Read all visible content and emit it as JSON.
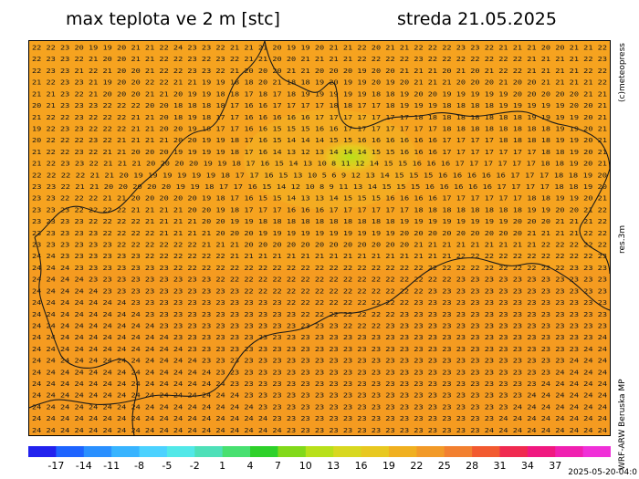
{
  "header": {
    "title": "max teplota ve 2 m [stc]",
    "date": "streda 21.05.2025"
  },
  "side_labels": {
    "copyright": "(c)meteopress",
    "resolution": "res.3m",
    "model": "WRF-ARW Beruska MP"
  },
  "timestamp": "2025-05-20-04:0",
  "legend": {
    "ticks": [
      "-17",
      "-14",
      "-11",
      "-8",
      "-5",
      "-2",
      "1",
      "4",
      "7",
      "10",
      "13",
      "16",
      "19",
      "22",
      "25",
      "28",
      "31",
      "34",
      "37"
    ],
    "colors": [
      "#2222ee",
      "#1e64ff",
      "#2a90ff",
      "#38b4ff",
      "#4cd2ff",
      "#52e8e8",
      "#4ee0b8",
      "#48e070",
      "#2ed12a",
      "#82d91a",
      "#b8e01a",
      "#d8d820",
      "#e8c820",
      "#f0b020",
      "#f29a28",
      "#f28030",
      "#f25a30",
      "#f02a50",
      "#f01880",
      "#f020b0",
      "#f030d8"
    ]
  },
  "map": {
    "grid_rows": [
      "22 22 23 20 19 19 20 21 21 22 24 23 23 22 21 21 21 20 19 19 20 21 21 22 20 21 21 22 22 22 23 23 22 21 21 21 20 20 21 21 22",
      "22 23 23 22 21 20 20 21 21 22 22 23 22 23 22 21 21 20 20 21 21 21 21 22 22 22 22 23 22 22 22 22 22 22 22 21 21 21 21 22 23",
      "22 23 23 21 22 21 20 20 21 22 22 23 23 22 21 20 20 20 21 21 20 20 20 19 20 20 21 21 21 20 21 20 21 22 22 21 21 21 21 22 22",
      "21 22 23 23 21 19 20 20 22 22 21 21 19 19 18 18 20 21 18 18 19 20 19 19 20 19 20 21 21 21 20 20 20 21 20 20 21 21 21 21 22",
      "21 21 23 22 21 20 20 20 21 21 20 19 19 18 18 17 18 17 18 19 19 19 19 19 18 18 19 20 20 19 19 19 19 19 20 20 20 20 20 21 21",
      "20 21 23 23 23 22 22 22 20 20 18 18 18 18 17 16 16 17 17 17 17 18 18 17 17 18 19 19 19 18 18 18 18 19 19 19 19 19 20 20 21",
      "21 22 22 23 22 22 22 21 21 20 18 19 18 17 17 16 16 16 16 16 17 17 17 17 17 17 17 18 18 18 18 18 18 18 18 19 19 19 19 20 21",
      "19 22 23 23 22 22 22 21 21 20 20 19 18 17 17 16 16 15 15 15 16 16 17 17 17 17 17 17 17 18 18 18 18 18 18 18 18 19 19 20 21",
      "20 22 22 22 23 22 21 21 21 21 20 20 19 19 18 17 16 15 14 14 14 15 15 16 16 16 16 16 16 17 17 17 17 18 18 18 18 19 19 20 21",
      "21 22 22 23 22 21 21 20 20 20 19 19 19 19 18 17 16 14 13 12 13 14 14 14 15 15 16 16 16 17 17 17 17 17 17 17 18 18 19 20 21",
      "21 22 23 23 22 21 21 21 20 20 20 20 19 19 18 17 16 15 14 13 10 8 11 12 14 15 15 16 16 16 17 17 17 17 17 17 18 18 19 20 21",
      "22 22 22 22 21 21 20 19 19 19 19 19 19 18 17 17 16 15 13 10 5 6 9 12 13 14 15 15 15 16 16 16 16 16 17 17 17 18 18 19 20",
      "23 23 22 21 21 20 20 20 20 20 19 19 18 17 17 16 15 14 12 10 8 9 11 13 14 15 15 15 16 16 16 16 16 17 17 17 17 18 18 19 20",
      "23 23 22 22 22 21 21 20 20 20 20 20 19 18 17 16 15 15 14 13 13 14 15 15 15 16 16 16 16 17 17 17 17 17 17 18 18 19 19 20 21",
      "23 23 23 22 22 22 22 21 21 21 21 20 20 19 18 17 17 17 16 16 16 17 17 17 17 17 17 18 18 18 18 18 18 18 18 19 19 20 20 21 22",
      "23 23 23 23 22 22 22 22 21 21 21 21 20 20 19 19 18 18 18 18 18 18 18 18 18 18 19 19 19 19 19 19 19 19 20 20 20 21 21 21 22",
      "23 23 23 23 23 22 22 22 22 21 21 21 21 20 20 20 19 19 19 19 19 19 19 19 19 19 20 20 20 20 20 20 20 20 20 21 21 21 21 22 22",
      "23 23 23 23 23 23 22 22 22 22 22 22 21 21 21 20 20 20 20 20 20 20 20 20 20 20 20 21 21 21 21 21 21 21 21 21 22 22 22 22 22",
      "24 24 23 23 23 23 23 23 22 22 22 22 22 22 21 21 21 21 21 21 21 21 21 21 21 21 21 21 21 21 22 22 22 22 22 22 22 22 22 22 23",
      "24 24 24 23 23 23 23 23 23 23 22 22 22 22 22 22 22 22 22 22 22 22 22 22 22 22 22 22 22 22 22 22 22 22 22 22 22 22 23 23 23",
      "24 24 24 24 23 23 23 23 23 23 23 23 23 22 22 22 22 22 22 22 22 22 22 22 22 22 22 22 22 22 23 23 23 23 23 23 23 23 23 23 23",
      "24 24 24 24 24 23 23 23 23 23 23 23 23 23 23 22 22 22 22 22 22 22 22 22 22 22 22 22 23 23 23 23 23 23 23 23 23 23 23 23 23",
      "24 24 24 24 24 24 24 23 23 23 23 23 23 23 23 23 23 23 22 22 22 22 22 22 22 22 22 23 23 23 23 23 23 23 23 23 23 23 23 23 23",
      "24 24 24 24 24 24 24 24 23 23 23 23 23 23 23 23 23 23 23 22 22 22 22 22 22 22 23 23 23 23 23 23 23 23 23 23 23 23 23 23 23",
      "24 24 24 24 24 24 24 24 24 23 23 23 23 23 23 23 23 23 23 23 23 23 22 22 22 23 23 23 23 23 23 23 23 23 23 23 23 23 23 23 23",
      "24 24 24 24 24 24 24 24 24 24 23 23 23 23 23 23 23 23 23 23 23 23 23 23 23 23 23 23 23 23 23 23 23 23 23 23 23 23 23 23 24",
      "24 24 24 24 24 24 24 24 24 24 24 23 23 23 23 23 23 23 23 23 23 23 23 23 23 23 23 23 23 23 23 23 23 23 23 23 23 23 23 24 24",
      "24 24 24 24 24 24 24 24 24 24 24 24 23 23 23 23 23 23 23 23 23 23 23 23 23 23 23 23 23 23 23 23 23 23 23 23 23 23 24 24 24",
      "24 24 24 24 24 24 24 24 24 24 24 24 24 23 23 23 23 23 23 23 23 23 23 23 23 23 23 23 23 23 23 23 23 23 23 23 23 24 24 24 24",
      "24 24 24 24 24 24 24 24 24 24 24 24 24 24 23 23 23 23 23 23 23 23 23 23 23 23 23 23 23 23 23 23 23 23 23 23 24 24 24 24 24",
      "24 24 24 24 24 24 24 24 24 24 24 24 24 24 24 23 23 23 23 23 23 23 23 23 23 23 23 23 23 23 23 23 23 23 23 24 24 24 24 24 24",
      "24 24 24 24 24 24 24 24 24 24 24 24 24 24 24 24 23 23 23 23 23 23 23 23 23 23 23 23 23 23 23 23 23 23 24 24 24 24 24 24 24",
      "24 24 24 24 24 24 24 24 24 24 24 24 24 24 24 24 24 23 23 23 23 23 23 23 23 23 23 23 23 23 23 23 23 24 24 24 24 24 24 24 24",
      "24 24 24 24 24 24 24 24 24 24 24 24 24 24 24 24 24 24 23 23 23 23 23 23 23 23 23 23 23 23 23 23 24 24 24 24 24 24 24 24 24"
    ]
  }
}
